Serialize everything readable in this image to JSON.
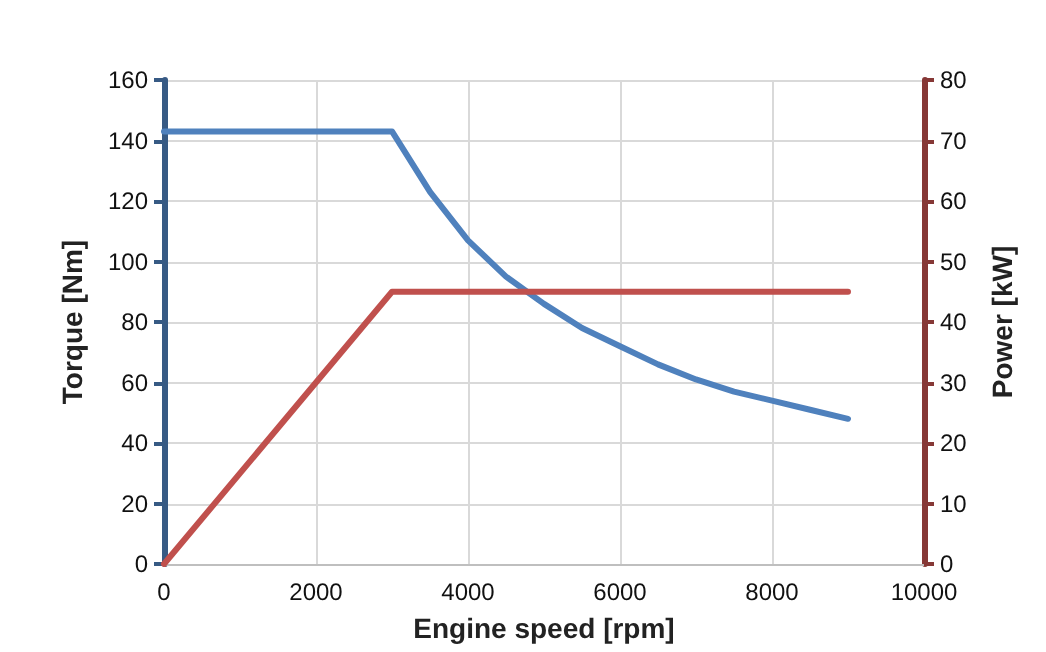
{
  "chart_data": {
    "type": "line",
    "xlabel": "Engine speed [rpm]",
    "ylabel": "Torque [Nm]",
    "y2label": "Power [kW]",
    "xlim": [
      0,
      10000
    ],
    "xticks": [
      0,
      2000,
      4000,
      6000,
      8000,
      10000
    ],
    "ylim": [
      0,
      160
    ],
    "yticks": [
      0,
      20,
      40,
      60,
      80,
      100,
      120,
      140,
      160
    ],
    "y2lim": [
      0,
      80
    ],
    "y2ticks": [
      0,
      10,
      20,
      30,
      40,
      50,
      60,
      70,
      80
    ],
    "grid": true,
    "marker": "none",
    "line_style": "solid",
    "series": [
      {
        "color": "#4f81bd",
        "x": [
          0,
          3000,
          3500,
          4000,
          4500,
          5000,
          5500,
          6000,
          6500,
          7000,
          7500,
          8000,
          8500,
          9000
        ],
        "values": [
          143,
          143,
          123,
          107,
          95,
          86,
          78,
          72,
          66,
          61,
          57,
          54,
          51,
          48
        ]
      },
      {
        "color": "#c0504d",
        "axis": "y2",
        "x": [
          0,
          3000,
          9000
        ],
        "values": [
          0,
          45,
          45
        ]
      }
    ]
  }
}
